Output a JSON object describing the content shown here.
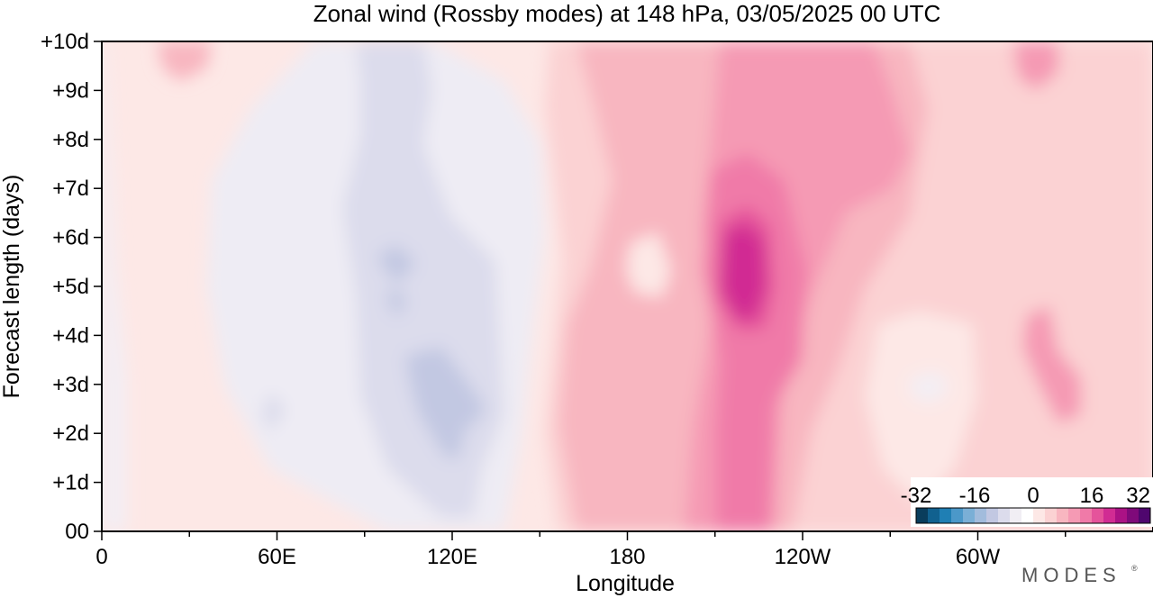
{
  "chart_data": {
    "type": "heatmap",
    "title": "Zonal wind (Rossby modes) at 148 hPa,  03/05/2025  00 UTC",
    "xlabel": "Longitude",
    "ylabel": "Forecast length (days)",
    "x_ticks": [
      "0",
      "60E",
      "120E",
      "180",
      "120W",
      "60W"
    ],
    "y_ticks": [
      "00",
      "+1d",
      "+2d",
      "+3d",
      "+4d",
      "+5d",
      "+6d",
      "+7d",
      "+8d",
      "+9d",
      "+10d"
    ],
    "xlim": [
      0,
      360
    ],
    "ylim": [
      0,
      10
    ],
    "colorbar": {
      "tick_labels": [
        "-32",
        "-16",
        "0",
        "16",
        "32"
      ],
      "range": [
        -32,
        32
      ],
      "colors": [
        "#0a3d5c",
        "#11618f",
        "#1f7fb4",
        "#4b98c9",
        "#7aafd6",
        "#a2bcdc",
        "#c2c8e2",
        "#dcdcec",
        "#f1eef4",
        "#ffffff",
        "#fde8e6",
        "#fbd2d3",
        "#f8b6c0",
        "#f59ab4",
        "#f07aa8",
        "#e5539b",
        "#d12c93",
        "#ab1285",
        "#7f0a7a",
        "#4f066e"
      ]
    },
    "features": [
      {
        "lon_range": [
          95,
          145
        ],
        "days": [
          0,
          10
        ],
        "sign": "negative",
        "peak_approx": -6
      },
      {
        "lon_range": [
          195,
          215
        ],
        "days": [
          0,
          10
        ],
        "sign": "positive",
        "peak_approx": 20
      },
      {
        "lon_range": [
          315,
          325
        ],
        "days": [
          2,
          5
        ],
        "sign": "positive",
        "peak_approx": 12
      }
    ]
  },
  "watermark": "MODES"
}
